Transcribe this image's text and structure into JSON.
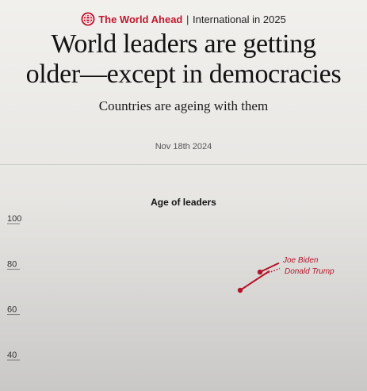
{
  "header": {
    "brand": "The World Ahead",
    "separator": "|",
    "section": "International in 2025",
    "icon": "globe-icon"
  },
  "article": {
    "headline_line1": "World leaders are getting",
    "headline_line2": "older—except in democracies",
    "subheadline": "Countries are ageing with them",
    "date": "Nov 18th 2024"
  },
  "chart_data": {
    "type": "line",
    "title": "Age of leaders",
    "xlabel": "",
    "ylabel": "",
    "ylim": [
      35,
      105
    ],
    "yticks": [
      100,
      80,
      60,
      40
    ],
    "grid": false,
    "series": [
      {
        "name": "Joe Biden",
        "points": [
          [
            0.0,
            78
          ],
          [
            1.0,
            82
          ]
        ],
        "color": "#b5152b",
        "dash": false
      },
      {
        "name": "Donald Trump",
        "points": [
          [
            0.0,
            70
          ],
          [
            1.0,
            78.5
          ]
        ],
        "color": "#b5152b",
        "dash": false
      }
    ],
    "annotations": [
      "Joe Biden",
      "Donald Trump"
    ]
  },
  "colors": {
    "accent": "#c0182f",
    "series": "#b5152b",
    "axis_text": "#333333"
  }
}
